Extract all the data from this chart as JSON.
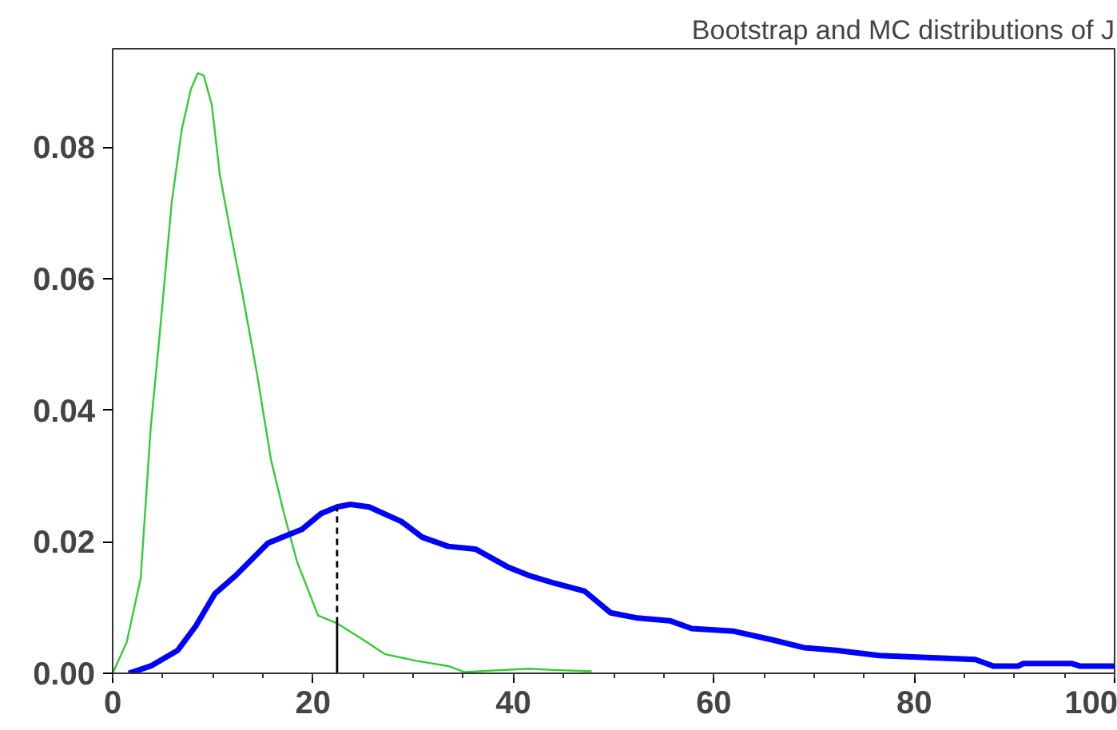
{
  "chart_data": {
    "type": "line",
    "title": "Bootstrap and MC distributions of J",
    "xlim": [
      0,
      100
    ],
    "xticks": [
      0,
      20,
      40,
      60,
      80,
      100
    ],
    "ylim": [
      0,
      0.095
    ],
    "yticks": [
      {
        "value": 0,
        "label": "0.00"
      },
      {
        "value": 0.02,
        "label": "0.02"
      },
      {
        "value": 0.04,
        "label": "0.04"
      },
      {
        "value": 0.06,
        "label": "0.06"
      },
      {
        "value": 0.08,
        "label": "0.08"
      }
    ],
    "grid": false,
    "marker": "none",
    "line_style": "solid",
    "ref_lines": [
      {
        "axis": "x",
        "value": 22.4,
        "label": null,
        "color": "#000000",
        "line_style": "solid"
      },
      {
        "axis": "x",
        "value": 22.4,
        "label": null,
        "color": "#000000",
        "line_style": "dashed"
      }
    ],
    "series": [
      {
        "color": "#33cc33",
        "x": [
          0,
          1.4,
          2.8,
          3.8,
          4.6,
          5.9,
          6.9,
          7.8,
          8.5,
          9.1,
          9.9,
          10.7,
          11.8,
          12.9,
          14.4,
          15.8,
          17.1,
          18.4,
          20.5,
          22.4,
          25.0,
          27.2,
          30.3,
          33.5,
          35.1,
          41.5,
          44.1,
          47.8
        ],
        "values": [
          0,
          0.0047,
          0.0145,
          0.0374,
          0.05,
          0.0717,
          0.0827,
          0.0888,
          0.0913,
          0.0909,
          0.0864,
          0.0758,
          0.0668,
          0.0582,
          0.0456,
          0.0325,
          0.0243,
          0.017,
          0.0088,
          0.0076,
          0.0051,
          0.0029,
          0.0019,
          0.0011,
          0.0002,
          0.0007,
          0.0005,
          0.0003
        ]
      },
      {
        "color": "#0000ff",
        "x": [
          1.6,
          3.8,
          6.5,
          8.3,
          10.2,
          12.3,
          15.5,
          17.6,
          18.9,
          20.8,
          22.4,
          23.7,
          25.6,
          28.8,
          30.9,
          33.5,
          36.2,
          39.4,
          41.5,
          44.1,
          47.1,
          49.7,
          52.4,
          55.6,
          57.8,
          62.0,
          65.8,
          69.0,
          72.2,
          76.5,
          86.1,
          87.9,
          90.4,
          90.9,
          95.7,
          96.5,
          100
        ],
        "values": [
          0,
          0.0011,
          0.0035,
          0.0072,
          0.0121,
          0.0149,
          0.0198,
          0.0211,
          0.0219,
          0.0243,
          0.0253,
          0.0257,
          0.0253,
          0.0231,
          0.0207,
          0.0193,
          0.0189,
          0.0162,
          0.0149,
          0.0137,
          0.0125,
          0.0092,
          0.0084,
          0.008,
          0.0068,
          0.0064,
          0.0051,
          0.0039,
          0.0035,
          0.0027,
          0.0021,
          0.0011,
          0.0011,
          0.0015,
          0.0015,
          0.0011,
          0.0011
        ]
      }
    ]
  }
}
